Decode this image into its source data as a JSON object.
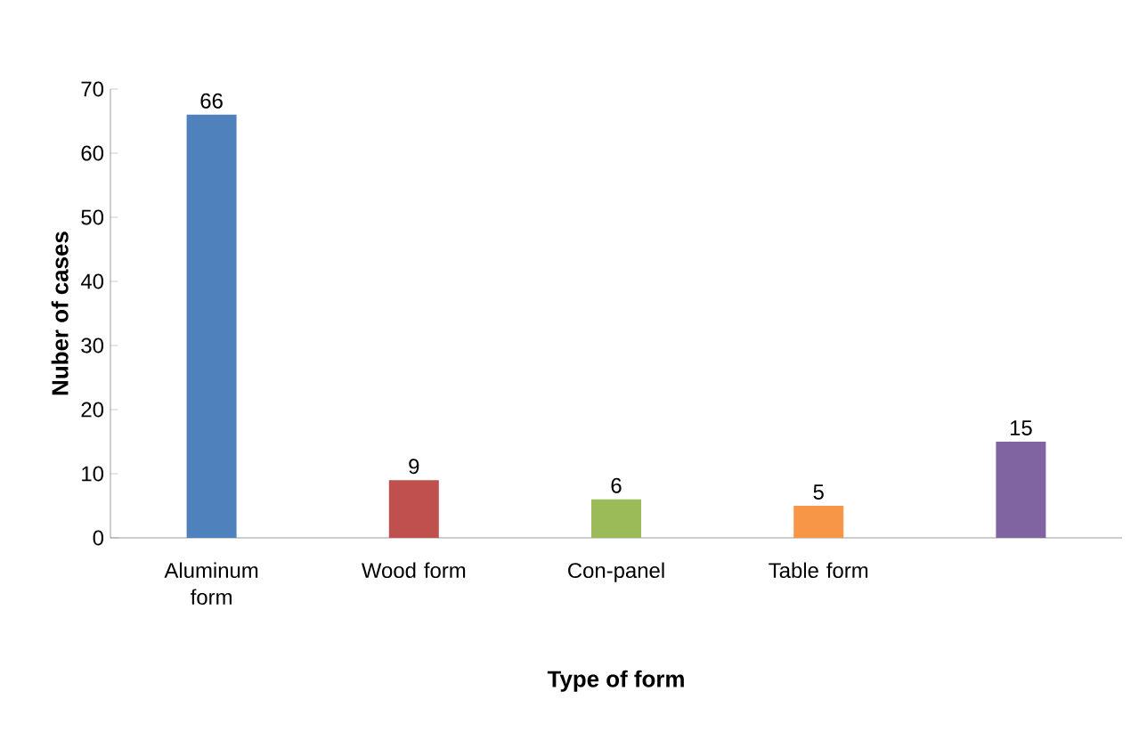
{
  "chart_data": {
    "type": "bar",
    "categories": [
      "Aluminum form",
      "Wood form",
      "Con-panel",
      "Table form",
      null
    ],
    "values": [
      66,
      9,
      6,
      5,
      15
    ],
    "colors": [
      "#4f81bd",
      "#c0504d",
      "#9bbb59",
      "#f79646",
      "#8064a2"
    ],
    "xlabel": "Type of form",
    "ylabel": "Nuber of cases",
    "ylim": [
      0,
      70
    ],
    "yticks": [
      0,
      10,
      20,
      30,
      40,
      50,
      60,
      70
    ],
    "data_labels": true
  }
}
